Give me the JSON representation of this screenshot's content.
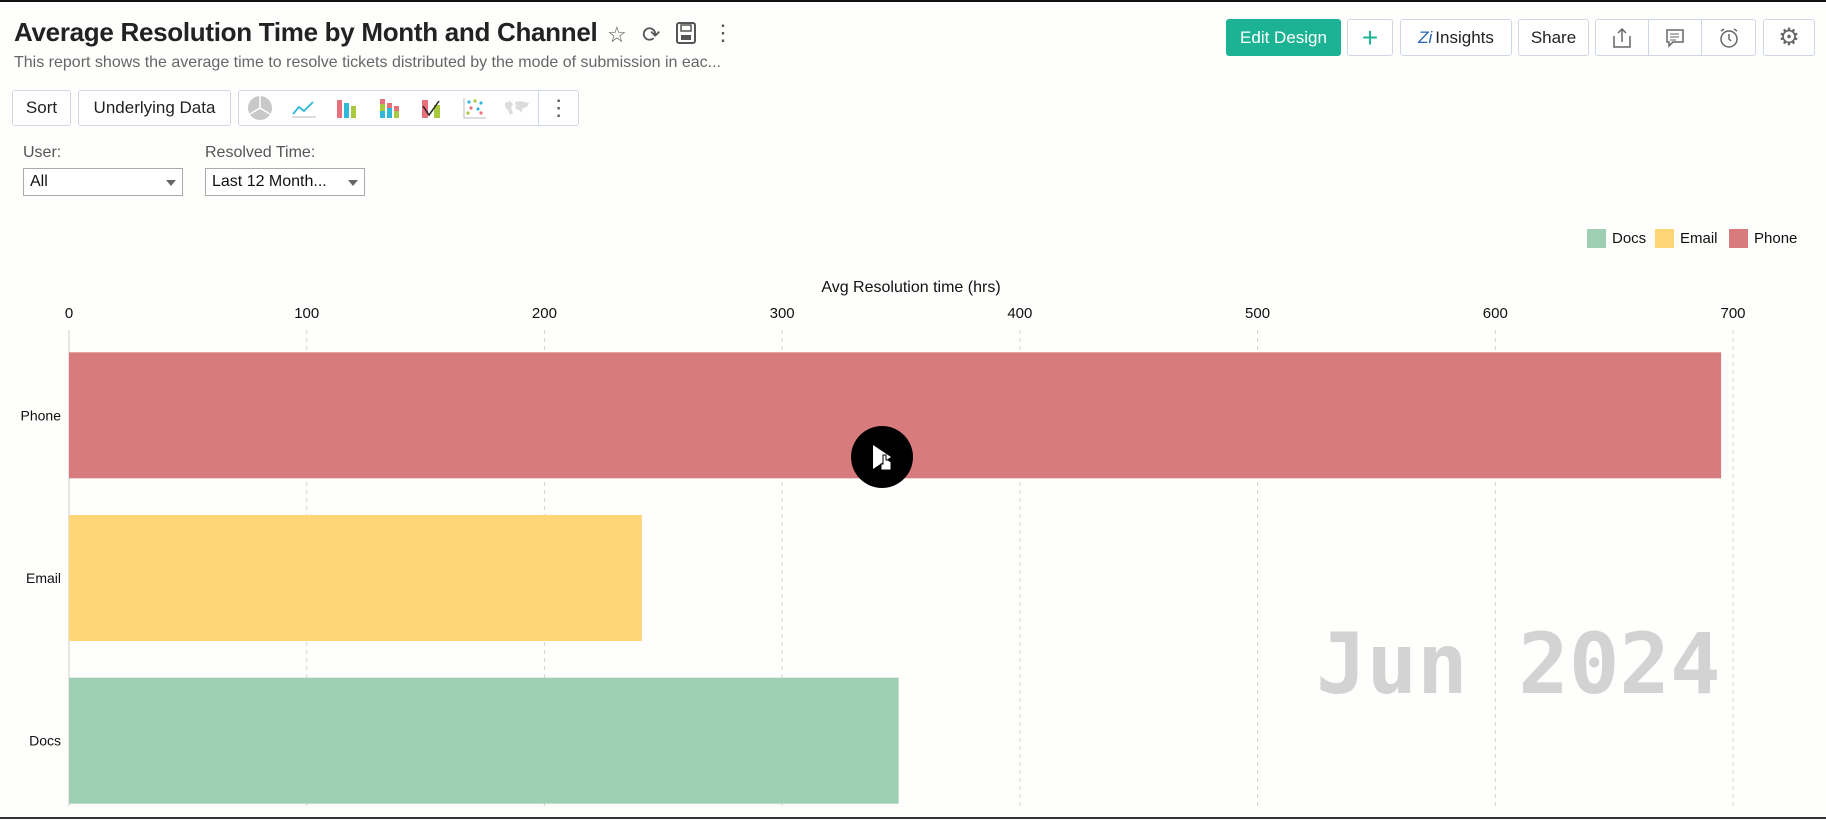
{
  "header": {
    "title": "Average Resolution Time by Month and Channel",
    "subtitle": "This report shows the average time to resolve tickets distributed by the mode of submission in eac...",
    "icons": [
      "star-icon",
      "refresh-icon",
      "save-icon",
      "more-vertical-icon"
    ]
  },
  "actions": {
    "edit_design": "Edit Design",
    "add": "+",
    "insights": "Insights",
    "share": "Share",
    "accent": "#1cb395"
  },
  "toolbar": {
    "sort": "Sort",
    "underlying_data": "Underlying Data",
    "chart_types": [
      "pie",
      "line",
      "bar",
      "stacked-bar",
      "combo",
      "scatter",
      "map"
    ]
  },
  "filters": {
    "user_label": "User:",
    "user_value": "All",
    "resolved_label": "Resolved Time:",
    "resolved_value": "Last 12 Month..."
  },
  "overlay": {
    "watermark": "Jun 2024"
  },
  "chart_data": {
    "type": "bar",
    "orientation": "horizontal",
    "xlabel": "Avg Resolution time (hrs)",
    "xlim": [
      0,
      700
    ],
    "xticks": [
      0,
      100,
      200,
      300,
      400,
      500,
      600,
      700
    ],
    "categories": [
      "Phone",
      "Email",
      "Docs"
    ],
    "values": [
      695,
      241,
      349
    ],
    "colors": {
      "Phone": "#d77b7c",
      "Email": "#fed678",
      "Docs": "#9ecfb2"
    },
    "legend": [
      "Docs",
      "Email",
      "Phone"
    ],
    "legend_position": "top-right",
    "grid": "vertical dashed"
  }
}
